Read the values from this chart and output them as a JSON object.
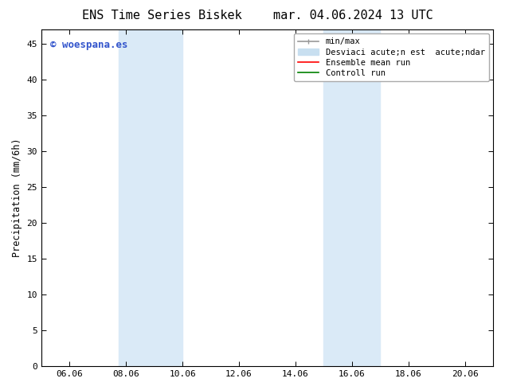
{
  "title_left": "ENS Time Series Biskek",
  "title_right": "mar. 04.06.2024 13 UTC",
  "ylabel": "Precipitation (mm/6h)",
  "watermark": "© woespana.es",
  "xlim": [
    5.0,
    21.0
  ],
  "ylim": [
    0,
    47
  ],
  "xticks": [
    6,
    8,
    10,
    12,
    14,
    16,
    18,
    20
  ],
  "xticklabels": [
    "06.06",
    "08.06",
    "10.06",
    "12.06",
    "14.06",
    "16.06",
    "18.06",
    "20.06"
  ],
  "yticks": [
    0,
    5,
    10,
    15,
    20,
    25,
    30,
    35,
    40,
    45
  ],
  "shaded_regions": [
    {
      "xmin": 7.75,
      "xmax": 10.0,
      "color": "#daeaf7"
    },
    {
      "xmin": 15.0,
      "xmax": 17.0,
      "color": "#daeaf7"
    }
  ],
  "legend_entries": [
    {
      "label": "min/max",
      "color": "#999999",
      "lw": 1.2,
      "type": "errorbar"
    },
    {
      "label": "Desviaci acute;n est  acute;ndar",
      "color": "#c8dff0",
      "lw": 8,
      "type": "patch"
    },
    {
      "label": "Ensemble mean run",
      "color": "red",
      "lw": 1.2,
      "type": "line"
    },
    {
      "label": "Controll run",
      "color": "green",
      "lw": 1.2,
      "type": "line"
    }
  ],
  "background_color": "#ffffff",
  "plot_bg_color": "#ffffff",
  "spine_color": "#000000",
  "title_fontsize": 11,
  "label_fontsize": 8.5,
  "tick_fontsize": 8,
  "legend_fontsize": 7.5,
  "watermark_color": "#3355cc",
  "watermark_fontsize": 9
}
